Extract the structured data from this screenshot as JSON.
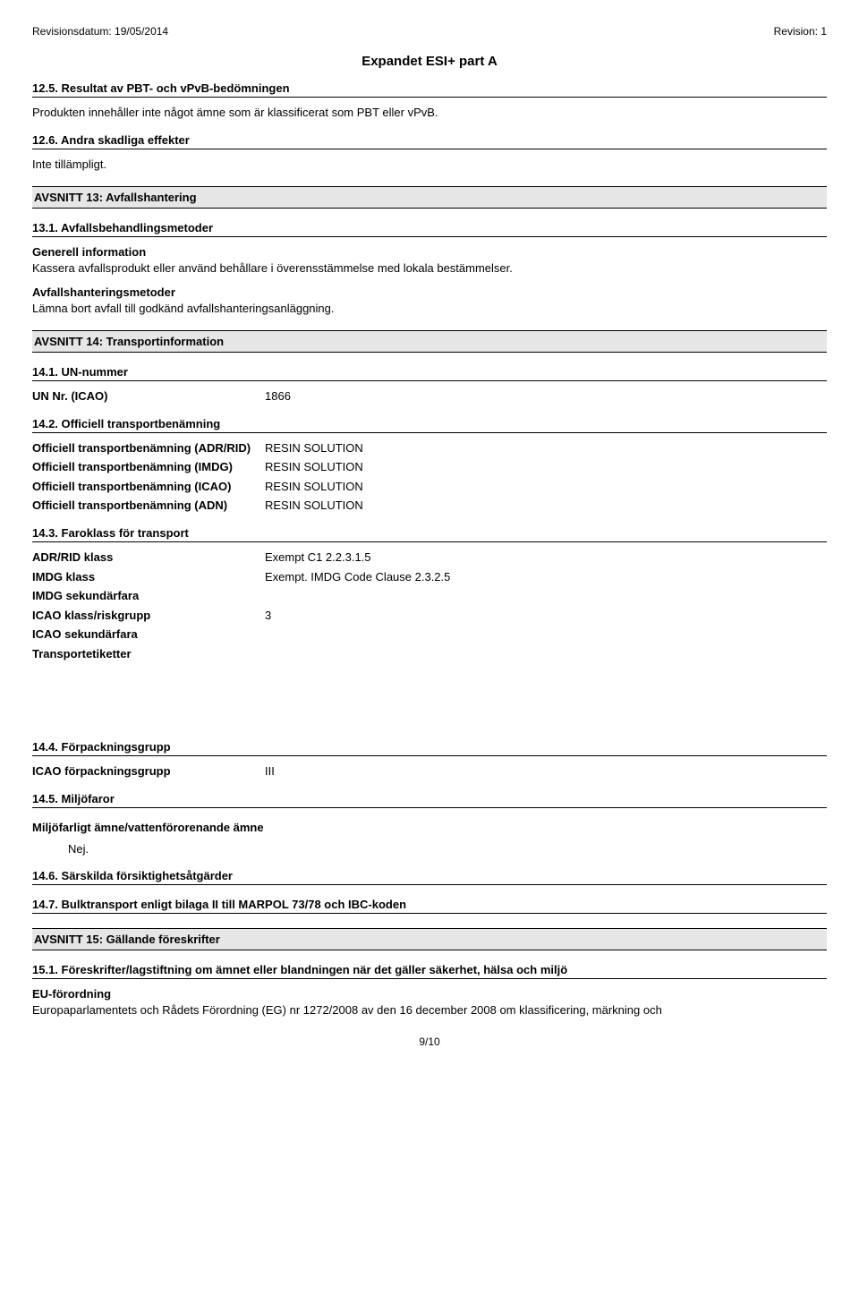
{
  "header": {
    "rev_date_label": "Revisionsdatum: 19/05/2014",
    "rev_num_label": "Revision: 1"
  },
  "title": "Expandet ESI+ part A",
  "s12_5": {
    "heading": "12.5. Resultat av PBT- och vPvB-bedömningen",
    "text": "Produkten innehåller inte något ämne som är klassificerat som PBT eller vPvB."
  },
  "s12_6": {
    "heading": "12.6. Andra skadliga effekter",
    "text": "Inte tillämpligt."
  },
  "s13": {
    "heading": "AVSNITT 13: Avfallshantering",
    "s13_1": {
      "heading": "13.1. Avfallsbehandlingsmetoder",
      "gen_label": "Generell information",
      "gen_text": "Kassera avfallsprodukt eller använd behållare i överensstämmelse med lokala bestämmelser.",
      "meth_label": "Avfallshanteringsmetoder",
      "meth_text": "Lämna bort avfall till godkänd avfallshanteringsanläggning."
    }
  },
  "s14": {
    "heading": "AVSNITT 14: Transportinformation",
    "s14_1": {
      "heading": "14.1. UN-nummer",
      "un_label": "UN Nr. (ICAO)",
      "un_value": "1866"
    },
    "s14_2": {
      "heading": "14.2. Officiell transportbenämning",
      "rows": [
        {
          "label": "Officiell transportbenämning (ADR/RID)",
          "value": "RESIN SOLUTION"
        },
        {
          "label": "Officiell transportbenämning (IMDG)",
          "value": "RESIN SOLUTION"
        },
        {
          "label": "Officiell transportbenämning (ICAO)",
          "value": "RESIN SOLUTION"
        },
        {
          "label": "Officiell transportbenämning (ADN)",
          "value": "RESIN SOLUTION"
        }
      ]
    },
    "s14_3": {
      "heading": "14.3. Faroklass för transport",
      "rows": [
        {
          "label": "ADR/RID klass",
          "value": "Exempt C1 2.2.3.1.5"
        },
        {
          "label": "IMDG klass",
          "value": "Exempt. IMDG Code Clause 2.3.2.5"
        },
        {
          "label": "IMDG sekundärfara",
          "value": ""
        },
        {
          "label": "ICAO klass/riskgrupp",
          "value": "3"
        },
        {
          "label": "ICAO sekundärfara",
          "value": ""
        },
        {
          "label": "Transportetiketter",
          "value": ""
        }
      ]
    },
    "s14_4": {
      "heading": "14.4. Förpackningsgrupp",
      "row": {
        "label": "ICAO förpackningsgrupp",
        "value": "III"
      }
    },
    "s14_5": {
      "heading": "14.5. Miljöfaror",
      "sub": "Miljöfarligt ämne/vattenförorenande ämne",
      "value": "Nej."
    },
    "s14_6": {
      "heading": "14.6. Särskilda försiktighetsåtgärder"
    },
    "s14_7": {
      "heading": "14.7. Bulktransport enligt bilaga II till MARPOL 73/78 och IBC-koden"
    }
  },
  "s15": {
    "heading": "AVSNITT 15: Gällande föreskrifter",
    "s15_1": {
      "heading": "15.1. Föreskrifter/lagstiftning om ämnet eller blandningen när det gäller säkerhet, hälsa och miljö",
      "eu_label": "EU-förordning",
      "eu_text": "Europaparlamentets och Rådets Förordning (EG) nr 1272/2008 av den 16 december 2008 om klassificering, märkning och"
    }
  },
  "page_num": "9/10"
}
